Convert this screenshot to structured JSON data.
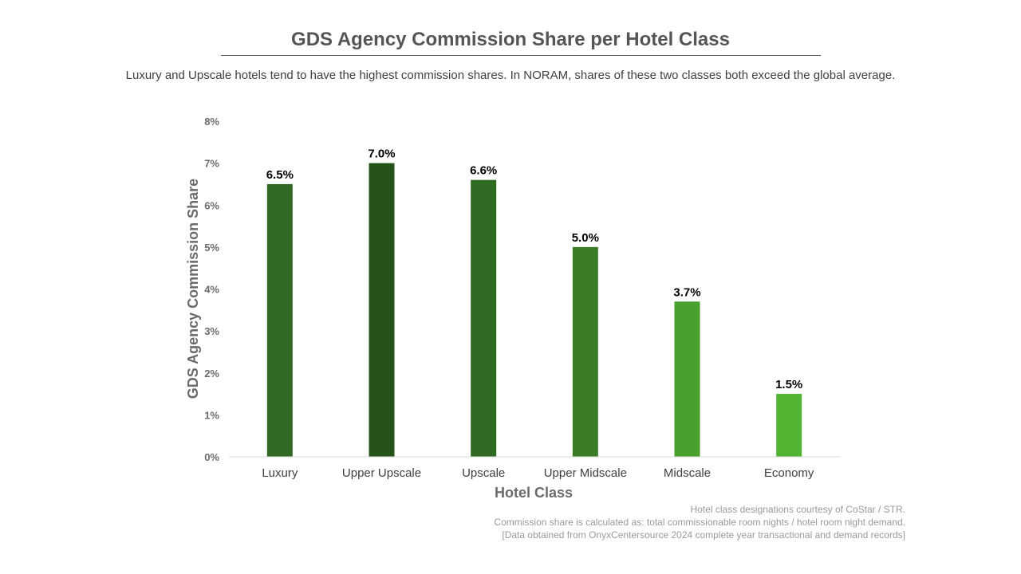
{
  "header": {
    "title": "GDS Agency Commission Share per Hotel Class",
    "subtitle": "Luxury and Upscale hotels tend to have the highest commission shares. In NORAM, shares of these two classes both exceed the global average."
  },
  "chart_data": {
    "type": "bar",
    "title": "GDS Agency Commission Share per Hotel Class",
    "xlabel": "Hotel Class",
    "ylabel": "GDS Agency Commission Share",
    "categories": [
      "Luxury",
      "Upper Upscale",
      "Upscale",
      "Upper Midscale",
      "Midscale",
      "Economy"
    ],
    "values": [
      6.5,
      7.0,
      6.6,
      5.0,
      3.7,
      1.5
    ],
    "value_labels": [
      "6.5%",
      "7.0%",
      "6.6%",
      "5.0%",
      "3.7%",
      "1.5%"
    ],
    "bar_colors": [
      "#2f6b22",
      "#265318",
      "#2f6b22",
      "#3b7d27",
      "#48a02d",
      "#52b332"
    ],
    "ylim": [
      0,
      8
    ],
    "yticks": [
      0,
      1,
      2,
      3,
      4,
      5,
      6,
      7,
      8
    ],
    "ytick_labels": [
      "0%",
      "1%",
      "2%",
      "3%",
      "4%",
      "5%",
      "6%",
      "7%",
      "8%"
    ],
    "grid": false,
    "legend": "none"
  },
  "footnotes": [
    "Hotel class designations courtesy of CoStar / STR.",
    "Commission share is calculated as: total commissionable room nights / hotel room night demand.",
    "[Data obtained from OnyxCentersource 2024 complete year transactional and demand records]"
  ]
}
